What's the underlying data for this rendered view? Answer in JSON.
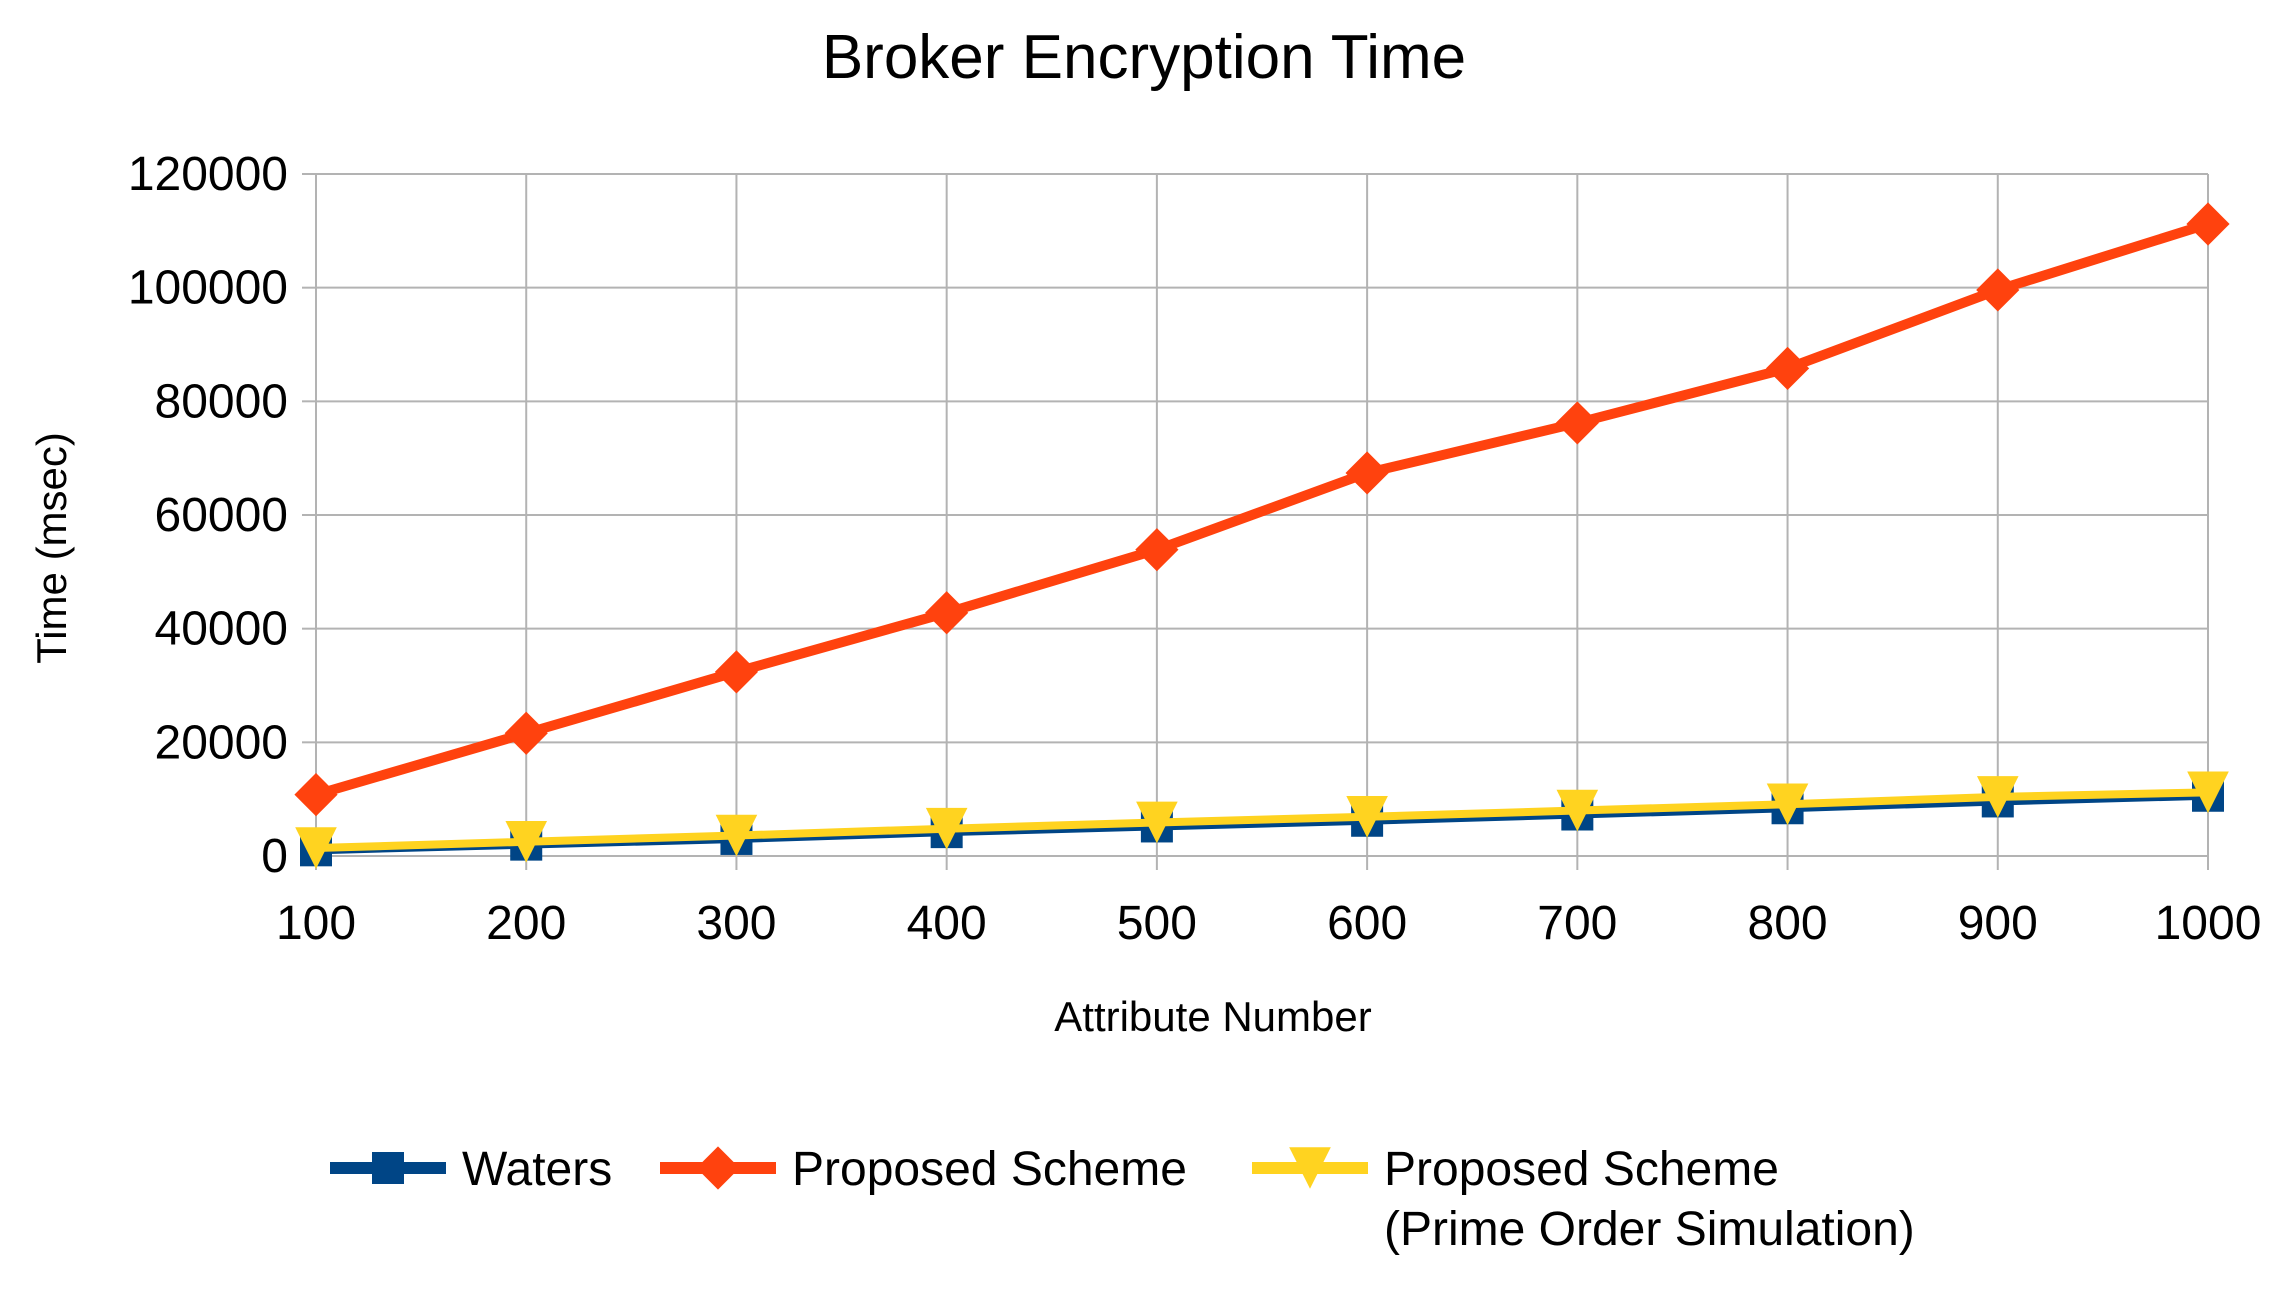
{
  "chart_data": {
    "type": "line",
    "title": "Broker Encryption Time",
    "xlabel": "Attribute Number",
    "ylabel": "Time (msec)",
    "categories": [
      "100",
      "200",
      "300",
      "400",
      "500",
      "600",
      "700",
      "800",
      "900",
      "1000"
    ],
    "ylim": [
      0,
      120000
    ],
    "yticks": [
      "0",
      "20000",
      "40000",
      "60000",
      "80000",
      "100000",
      "120000"
    ],
    "grid": true,
    "legend_position": "bottom",
    "series": [
      {
        "name": "Waters",
        "color": "#004586",
        "marker": "square",
        "values": [
          1000,
          2000,
          3000,
          4200,
          5200,
          6200,
          7300,
          8400,
          9600,
          10600
        ]
      },
      {
        "name": "Proposed Scheme",
        "color": "#ff420e",
        "marker": "diamond",
        "values": [
          10800,
          21600,
          32400,
          42800,
          53900,
          67400,
          76200,
          85800,
          99600,
          111200
        ]
      },
      {
        "name": "Proposed Scheme\n(Prime Order Simulation)",
        "color": "#ffd320",
        "marker": "triangle-down",
        "values": [
          1400,
          2500,
          3600,
          4800,
          5900,
          6900,
          8000,
          9100,
          10400,
          11200
        ]
      }
    ]
  }
}
